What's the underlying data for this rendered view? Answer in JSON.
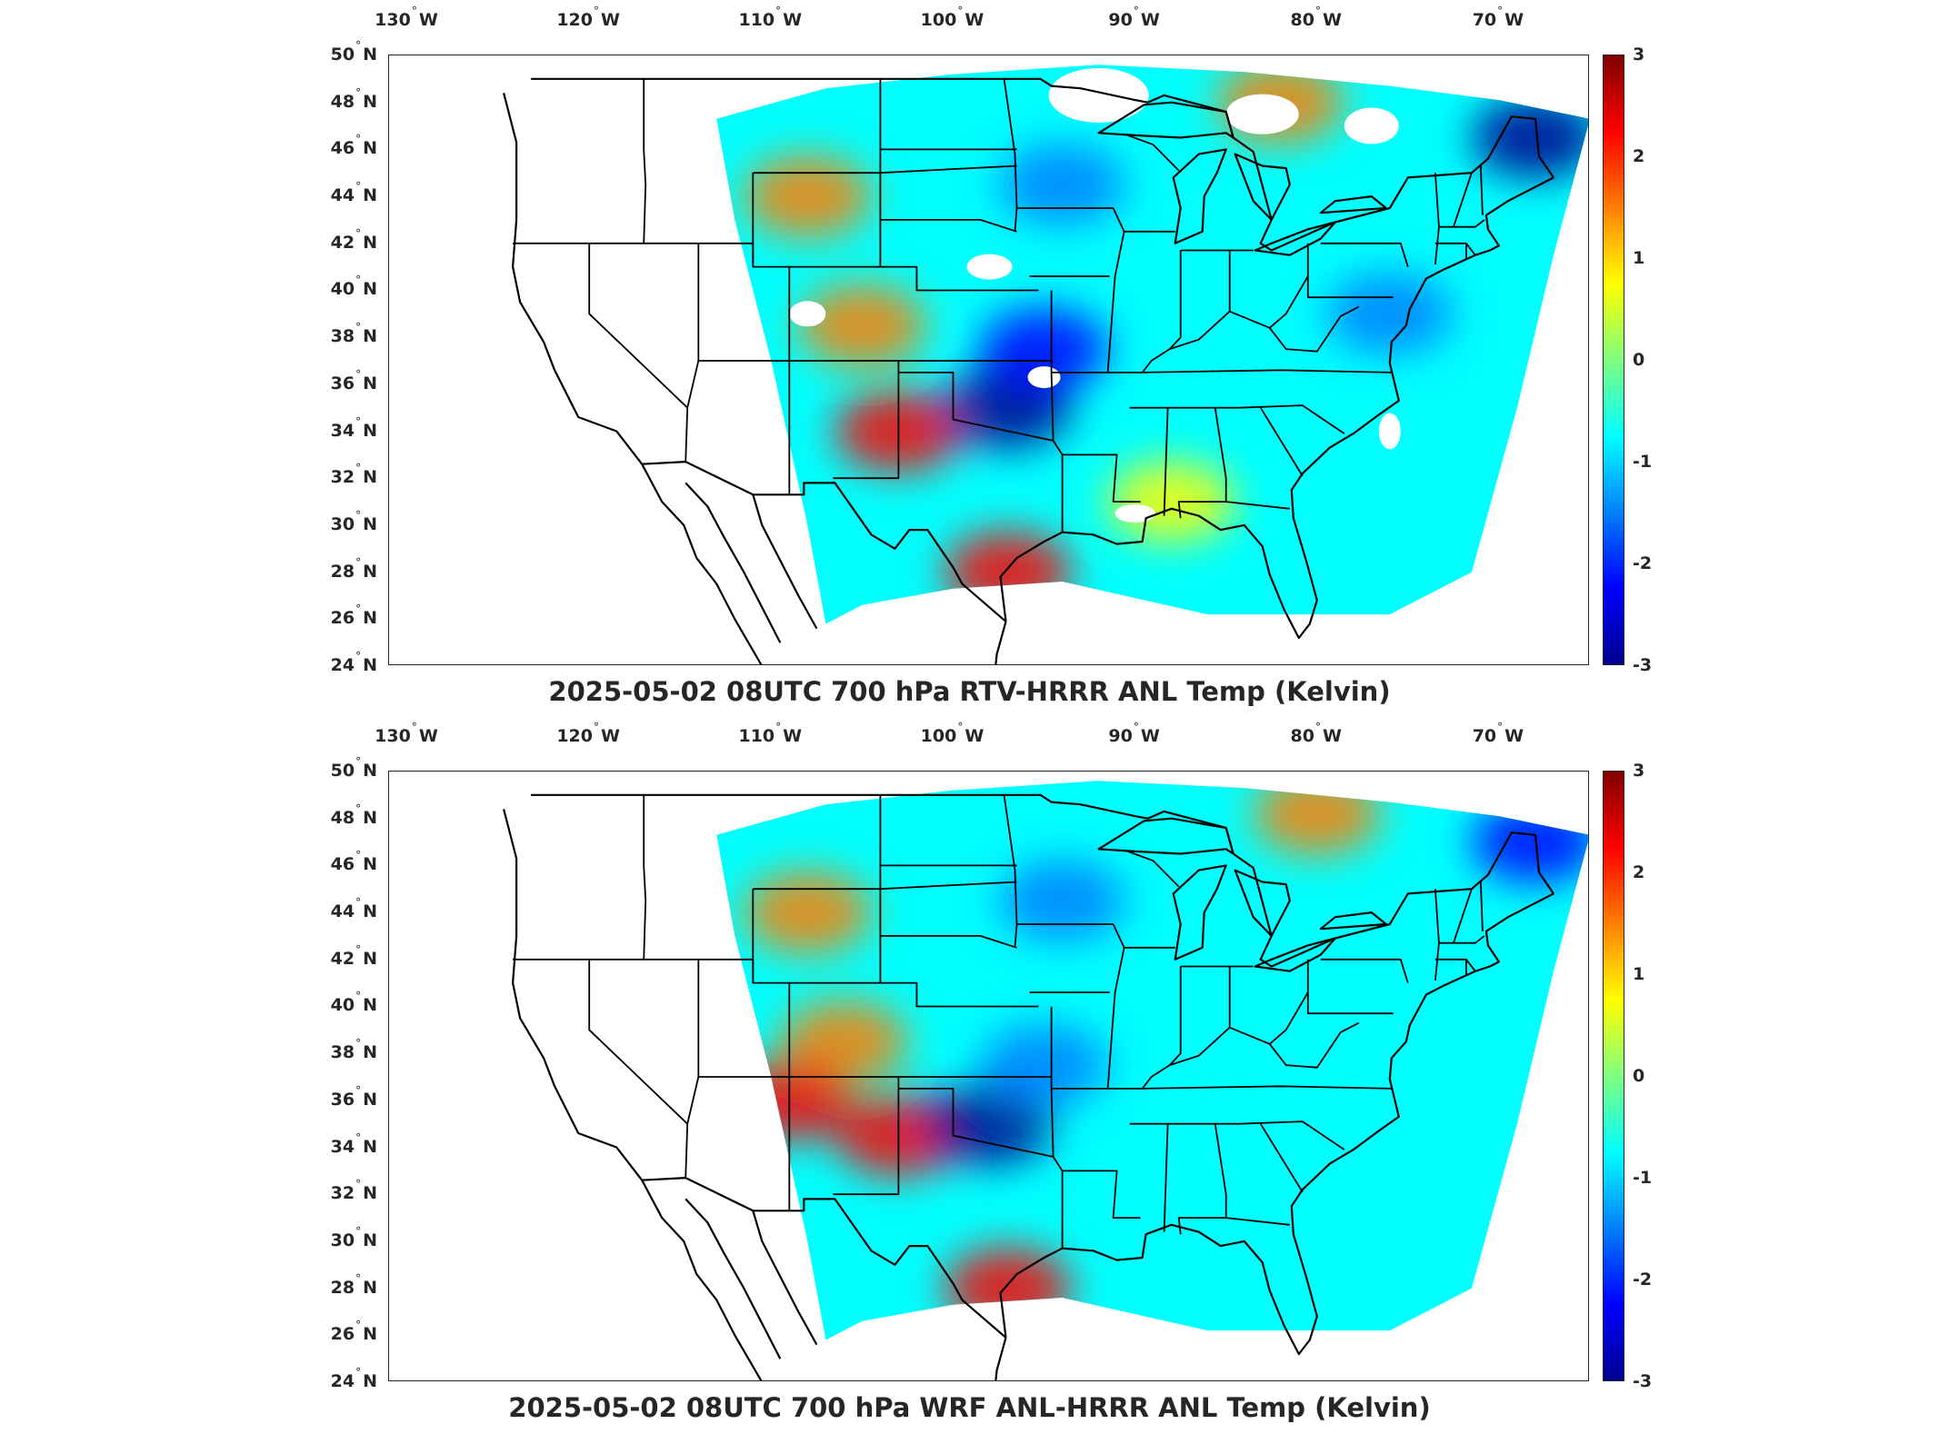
{
  "colors": {
    "colormap": [
      "#00008f",
      "#0000ff",
      "#007fff",
      "#00ffff",
      "#7fff7f",
      "#ffff00",
      "#ff7f00",
      "#ff0000",
      "#7f0000"
    ],
    "boundary_line": "#000000",
    "missing_data": "#ffffff"
  },
  "map": {
    "lon_range": [
      -131,
      -65
    ],
    "lat_range": [
      24,
      50
    ],
    "lon_ticks": [
      {
        "value": -130,
        "num": "130",
        "hem": "W"
      },
      {
        "value": -120,
        "num": "120",
        "hem": "W"
      },
      {
        "value": -110,
        "num": "110",
        "hem": "W"
      },
      {
        "value": -100,
        "num": "100",
        "hem": "W"
      },
      {
        "value": -90,
        "num": "90",
        "hem": "W"
      },
      {
        "value": -80,
        "num": "80",
        "hem": "W"
      },
      {
        "value": -70,
        "num": "70",
        "hem": "W"
      }
    ],
    "lat_ticks": [
      {
        "value": 50,
        "num": "50",
        "hem": "N"
      },
      {
        "value": 48,
        "num": "48",
        "hem": "N"
      },
      {
        "value": 46,
        "num": "46",
        "hem": "N"
      },
      {
        "value": 44,
        "num": "44",
        "hem": "N"
      },
      {
        "value": 42,
        "num": "42",
        "hem": "N"
      },
      {
        "value": 40,
        "num": "40",
        "hem": "N"
      },
      {
        "value": 38,
        "num": "38",
        "hem": "N"
      },
      {
        "value": 36,
        "num": "36",
        "hem": "N"
      },
      {
        "value": 34,
        "num": "34",
        "hem": "N"
      },
      {
        "value": 32,
        "num": "32",
        "hem": "N"
      },
      {
        "value": 30,
        "num": "30",
        "hem": "N"
      },
      {
        "value": 28,
        "num": "28",
        "hem": "N"
      },
      {
        "value": 26,
        "num": "26",
        "hem": "N"
      },
      {
        "value": 24,
        "num": "24",
        "hem": "N"
      }
    ],
    "degree_symbol": "°"
  },
  "colorbar": {
    "range": [
      -3,
      3
    ],
    "ticks": [
      "3",
      "2",
      "1",
      "0",
      "-1",
      "-2",
      "-3"
    ]
  },
  "panels": [
    {
      "title": "2025-05-02 08UTC 700 hPa RTV-HRRR ANL Temp (Kelvin)",
      "has_missing_data": true,
      "anomalies": [
        {
          "lon": -108,
          "lat": 44,
          "value": 1.6
        },
        {
          "lon": -105,
          "lat": 38.5,
          "value": 1.5
        },
        {
          "lon": -103,
          "lat": 34,
          "value": 2.2
        },
        {
          "lon": -97,
          "lat": 28,
          "value": 2.5
        },
        {
          "lon": -97,
          "lat": 35,
          "value": -2.8
        },
        {
          "lon": -95,
          "lat": 37.5,
          "value": -2.4
        },
        {
          "lon": -94,
          "lat": 44.5,
          "value": -1.8
        },
        {
          "lon": -68,
          "lat": 46.5,
          "value": -2.8
        },
        {
          "lon": -82,
          "lat": 48,
          "value": 1.3
        },
        {
          "lon": -88,
          "lat": 31,
          "value": 0.8
        },
        {
          "lon": -76,
          "lat": 39,
          "value": -1.4
        }
      ]
    },
    {
      "title": "2025-05-02 08UTC 700 hPa WRF ANL-HRRR ANL Temp (Kelvin)",
      "has_missing_data": false,
      "anomalies": [
        {
          "lon": -108,
          "lat": 44,
          "value": 1.4
        },
        {
          "lon": -106,
          "lat": 38.5,
          "value": 1.5
        },
        {
          "lon": -109,
          "lat": 36,
          "value": 2.3
        },
        {
          "lon": -103,
          "lat": 34.5,
          "value": 1.9
        },
        {
          "lon": -97,
          "lat": 28,
          "value": 2.6
        },
        {
          "lon": -98,
          "lat": 35,
          "value": -2.7
        },
        {
          "lon": -95,
          "lat": 37.5,
          "value": -1.8
        },
        {
          "lon": -94,
          "lat": 44.5,
          "value": -1.6
        },
        {
          "lon": -68,
          "lat": 47,
          "value": -2.6
        },
        {
          "lon": -80,
          "lat": 48.2,
          "value": 1.8
        },
        {
          "lon": -73,
          "lat": 37,
          "value": -1.1
        }
      ]
    }
  ]
}
